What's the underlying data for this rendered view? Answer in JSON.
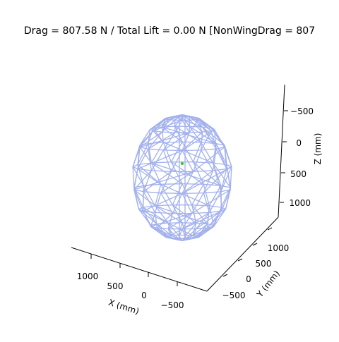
{
  "chart_data": {
    "type": "3d-wireframe",
    "title": "Drag = 807.58 N / Total Lift = 0.00 N [NonWingDrag = 807",
    "xlabel": "X (mm)",
    "ylabel": "Y (mm)",
    "zlabel": "Z (mm)",
    "x_ticks": [
      "1000",
      "500",
      "0",
      "−500"
    ],
    "y_ticks": [
      "−500",
      "0",
      "500",
      "1000"
    ],
    "z_ticks": [
      "−500",
      "0",
      "500",
      "1000"
    ],
    "zlim": [
      -850,
      1250
    ],
    "mesh_color": "#a3b1ee",
    "marker_color": "#22cc22",
    "grid": false
  }
}
